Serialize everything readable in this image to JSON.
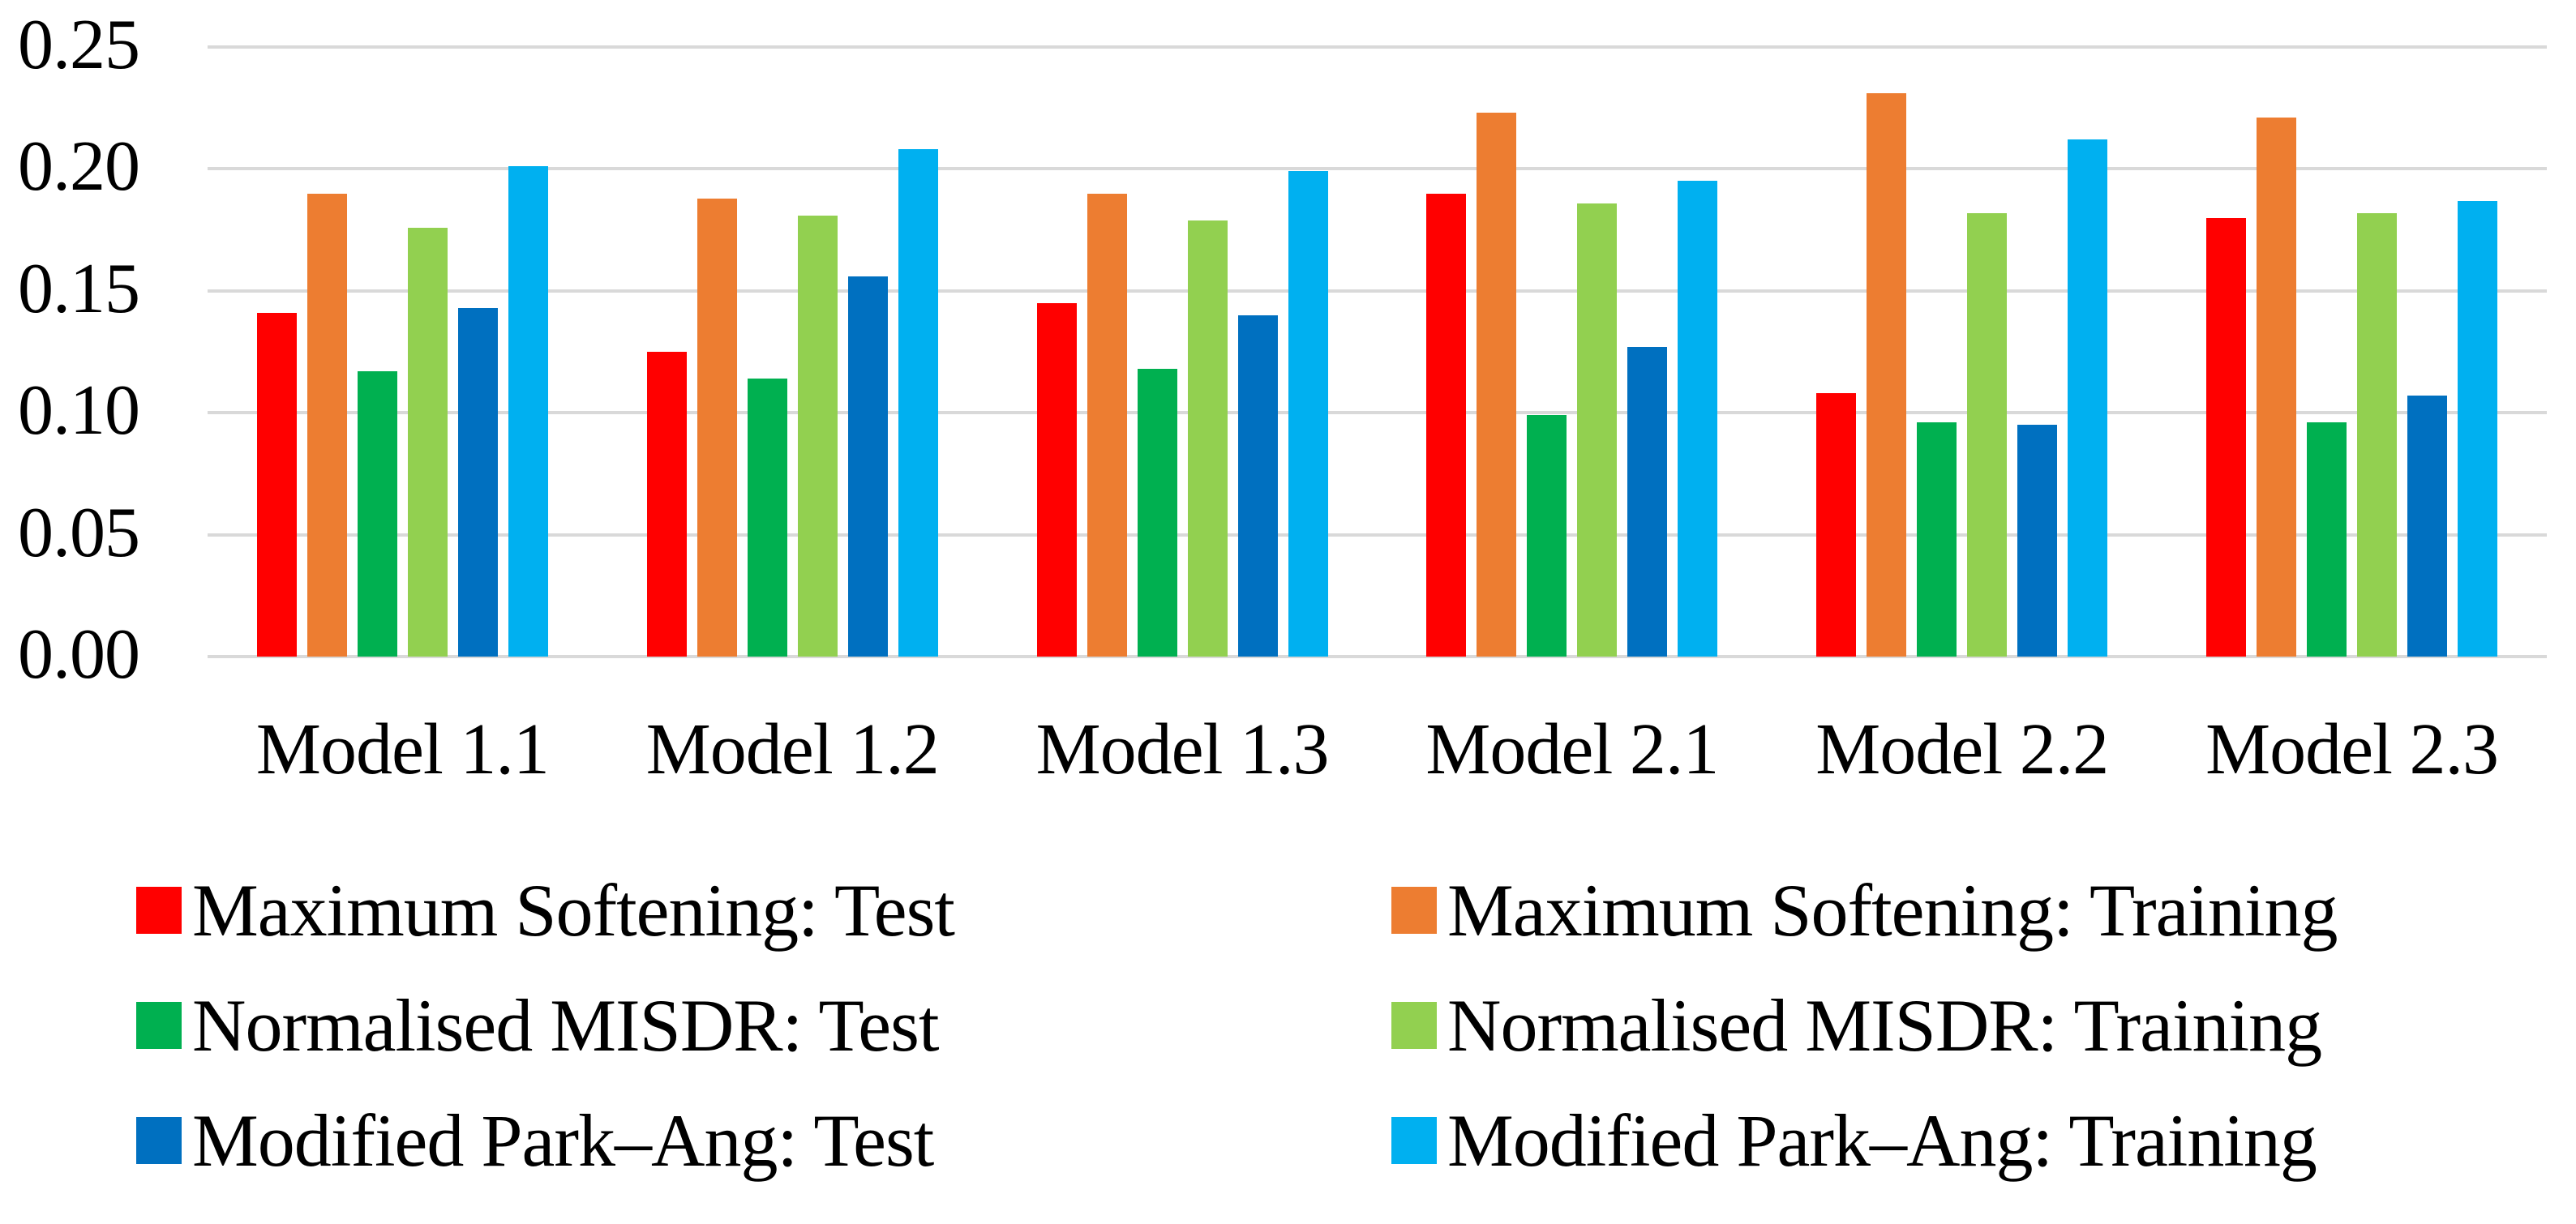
{
  "chart_data": {
    "type": "bar",
    "title": "",
    "xlabel": "",
    "ylabel": "",
    "ylim": [
      0,
      0.25
    ],
    "y_tick_step": 0.05,
    "y_ticks": [
      "0.25",
      "0.20",
      "0.15",
      "0.10",
      "0.05",
      "0.00"
    ],
    "grid": true,
    "gridline_color": "#D9D9D9",
    "legend_position": "bottom",
    "categories": [
      "Model 1.1",
      "Model 1.2",
      "Model 1.3",
      "Model 2.1",
      "Model 2.2",
      "Model 2.3"
    ],
    "series": [
      {
        "name": "Maximum Softening: Test",
        "color": "#FF0000",
        "values": [
          0.141,
          0.125,
          0.145,
          0.19,
          0.108,
          0.18
        ]
      },
      {
        "name": "Maximum Softening: Training",
        "color": "#ED7D31",
        "values": [
          0.19,
          0.188,
          0.19,
          0.223,
          0.231,
          0.221
        ]
      },
      {
        "name": "Normalised MISDR: Test",
        "color": "#00B050",
        "values": [
          0.117,
          0.114,
          0.118,
          0.099,
          0.096,
          0.096
        ]
      },
      {
        "name": "Normalised MISDR: Training",
        "color": "#92D050",
        "values": [
          0.176,
          0.181,
          0.179,
          0.186,
          0.182,
          0.182
        ]
      },
      {
        "name": "Modified Park–Ang: Test",
        "color": "#0070C0",
        "values": [
          0.143,
          0.156,
          0.14,
          0.127,
          0.095,
          0.107
        ]
      },
      {
        "name": "Modified Park–Ang: Training",
        "color": "#00B0F0",
        "values": [
          0.201,
          0.208,
          0.199,
          0.195,
          0.212,
          0.187
        ]
      }
    ]
  }
}
